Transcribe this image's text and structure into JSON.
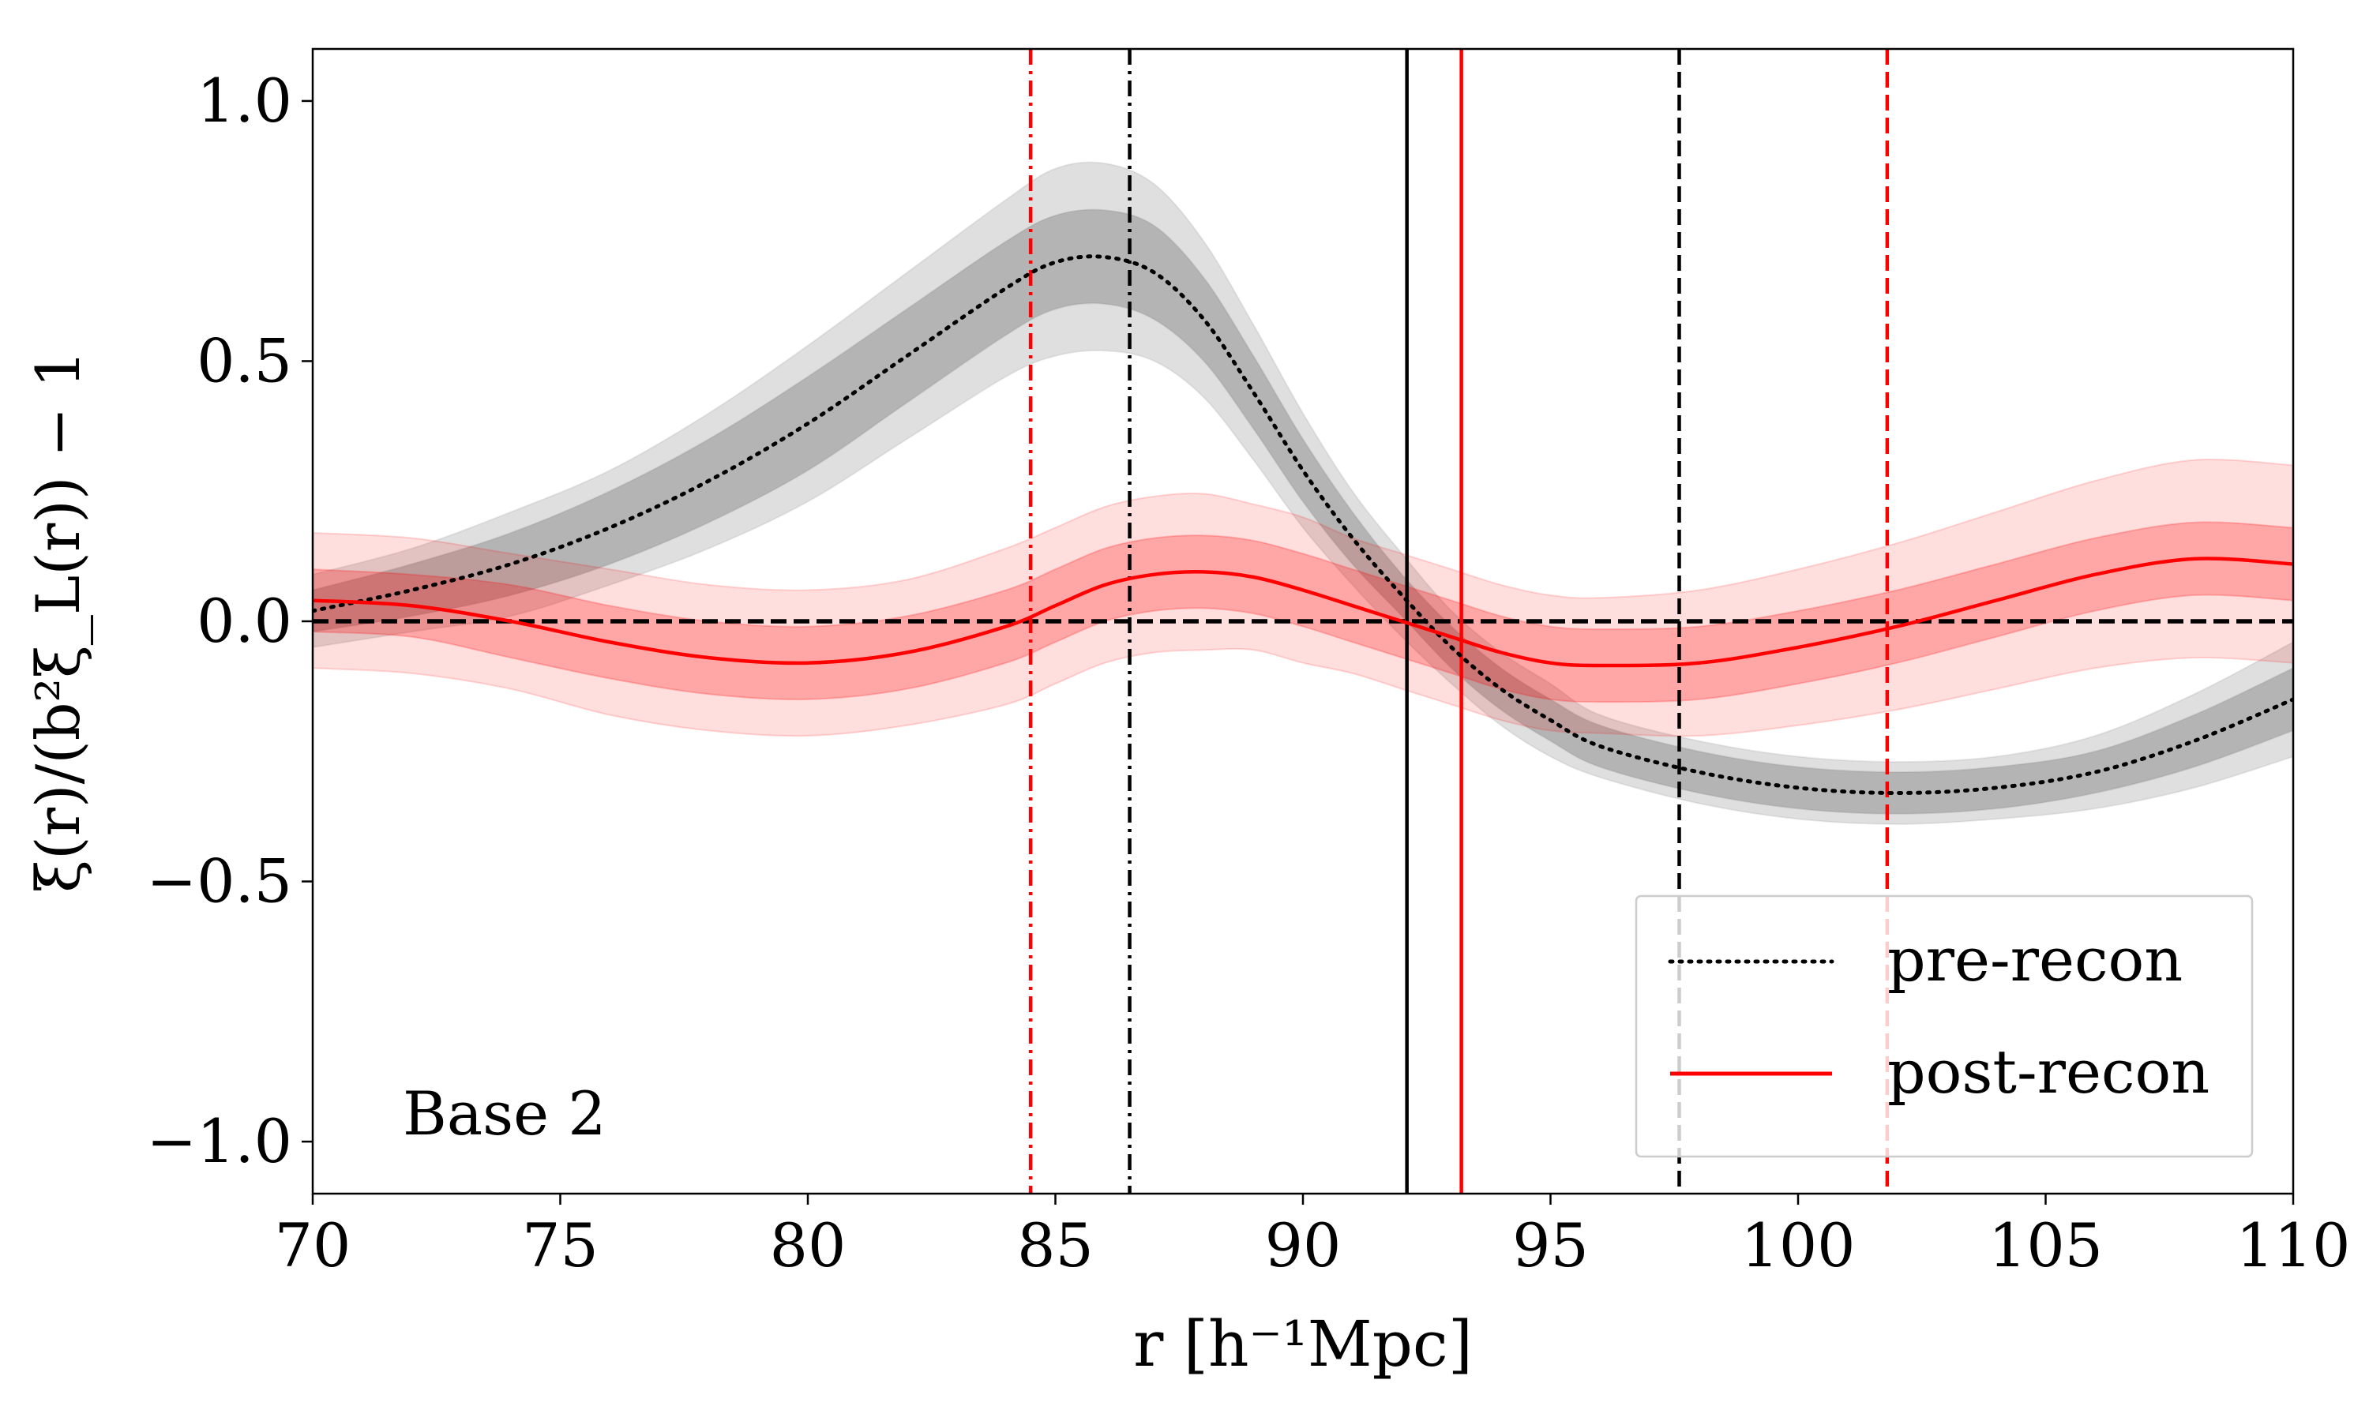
{
  "chart_data": {
    "type": "line",
    "xlabel": "r [h⁻¹Mpc]",
    "ylabel": "ξ(r)/(b²ξ_L(r)) − 1",
    "xlim": [
      70,
      110
    ],
    "ylim": [
      -1.1,
      1.1
    ],
    "x_ticks": [
      70,
      75,
      80,
      85,
      90,
      95,
      100,
      105,
      110
    ],
    "x_tick_labels": [
      "70",
      "75",
      "80",
      "85",
      "90",
      "95",
      "100",
      "105",
      "110"
    ],
    "y_ticks": [
      -1.0,
      -0.5,
      0.0,
      0.5,
      1.0
    ],
    "y_tick_labels": [
      "−1.0",
      "−0.5",
      "0.0",
      "0.5",
      "1.0"
    ],
    "annotation": "Base 2",
    "legend": {
      "placement": "lower-right",
      "entries": [
        {
          "label": "pre-recon",
          "color": "#000000",
          "style": "dotted"
        },
        {
          "label": "post-recon",
          "color": "#ff0000",
          "style": "solid"
        }
      ]
    },
    "series": [
      {
        "name": "pre-recon",
        "color": "#000000",
        "band_color": "#808080",
        "x": [
          70,
          72,
          74,
          76,
          78,
          80,
          82,
          84,
          85,
          86,
          87,
          88,
          89,
          90,
          91,
          92,
          93,
          94,
          95,
          96,
          98,
          100,
          102,
          104,
          106,
          108,
          110
        ],
        "y": [
          0.02,
          0.06,
          0.11,
          0.18,
          0.27,
          0.38,
          0.51,
          0.64,
          0.69,
          0.7,
          0.67,
          0.58,
          0.44,
          0.29,
          0.16,
          0.05,
          -0.05,
          -0.13,
          -0.19,
          -0.24,
          -0.29,
          -0.32,
          -0.33,
          -0.32,
          -0.29,
          -0.23,
          -0.15
        ],
        "inner_band": [
          0.04,
          0.05,
          0.06,
          0.07,
          0.08,
          0.09,
          0.09,
          0.09,
          0.09,
          0.09,
          0.09,
          0.08,
          0.07,
          0.06,
          0.05,
          0.04,
          0.04,
          0.04,
          0.04,
          0.04,
          0.04,
          0.04,
          0.04,
          0.04,
          0.04,
          0.05,
          0.06
        ],
        "outer_band": [
          0.07,
          0.08,
          0.1,
          0.11,
          0.13,
          0.15,
          0.16,
          0.17,
          0.18,
          0.18,
          0.17,
          0.15,
          0.13,
          0.11,
          0.09,
          0.08,
          0.07,
          0.07,
          0.07,
          0.06,
          0.06,
          0.06,
          0.06,
          0.06,
          0.07,
          0.09,
          0.11
        ]
      },
      {
        "name": "post-recon",
        "color": "#ff0000",
        "band_color": "#ff0000",
        "x": [
          70,
          72,
          74,
          76,
          78,
          80,
          82,
          84,
          85,
          86,
          87,
          88,
          89,
          90,
          91,
          92,
          93,
          94,
          95,
          96,
          98,
          100,
          102,
          104,
          106,
          108,
          110
        ],
        "y": [
          0.04,
          0.03,
          0.0,
          -0.04,
          -0.07,
          -0.08,
          -0.06,
          -0.01,
          0.03,
          0.07,
          0.09,
          0.095,
          0.085,
          0.06,
          0.03,
          0.0,
          -0.03,
          -0.06,
          -0.08,
          -0.085,
          -0.08,
          -0.05,
          -0.01,
          0.04,
          0.09,
          0.12,
          0.11
        ],
        "inner_band": [
          0.06,
          0.06,
          0.07,
          0.07,
          0.07,
          0.07,
          0.07,
          0.07,
          0.07,
          0.07,
          0.07,
          0.07,
          0.07,
          0.07,
          0.07,
          0.07,
          0.07,
          0.07,
          0.07,
          0.07,
          0.07,
          0.07,
          0.07,
          0.07,
          0.07,
          0.07,
          0.07
        ],
        "outer_band": [
          0.13,
          0.13,
          0.13,
          0.14,
          0.14,
          0.14,
          0.14,
          0.15,
          0.15,
          0.15,
          0.15,
          0.15,
          0.14,
          0.14,
          0.13,
          0.13,
          0.13,
          0.13,
          0.13,
          0.13,
          0.14,
          0.15,
          0.16,
          0.17,
          0.18,
          0.19,
          0.19
        ]
      }
    ],
    "reference_lines": [
      {
        "kind": "horizontal",
        "value": 0.0,
        "color": "#000000",
        "style": "dashed"
      },
      {
        "kind": "vertical",
        "value": 84.5,
        "color": "#ff0000",
        "style": "dashdot"
      },
      {
        "kind": "vertical",
        "value": 86.5,
        "color": "#000000",
        "style": "dashdot"
      },
      {
        "kind": "vertical",
        "value": 92.1,
        "color": "#000000",
        "style": "solid"
      },
      {
        "kind": "vertical",
        "value": 93.2,
        "color": "#ff0000",
        "style": "solid"
      },
      {
        "kind": "vertical",
        "value": 97.6,
        "color": "#000000",
        "style": "dashed"
      },
      {
        "kind": "vertical",
        "value": 101.8,
        "color": "#ff0000",
        "style": "dashed"
      }
    ]
  }
}
